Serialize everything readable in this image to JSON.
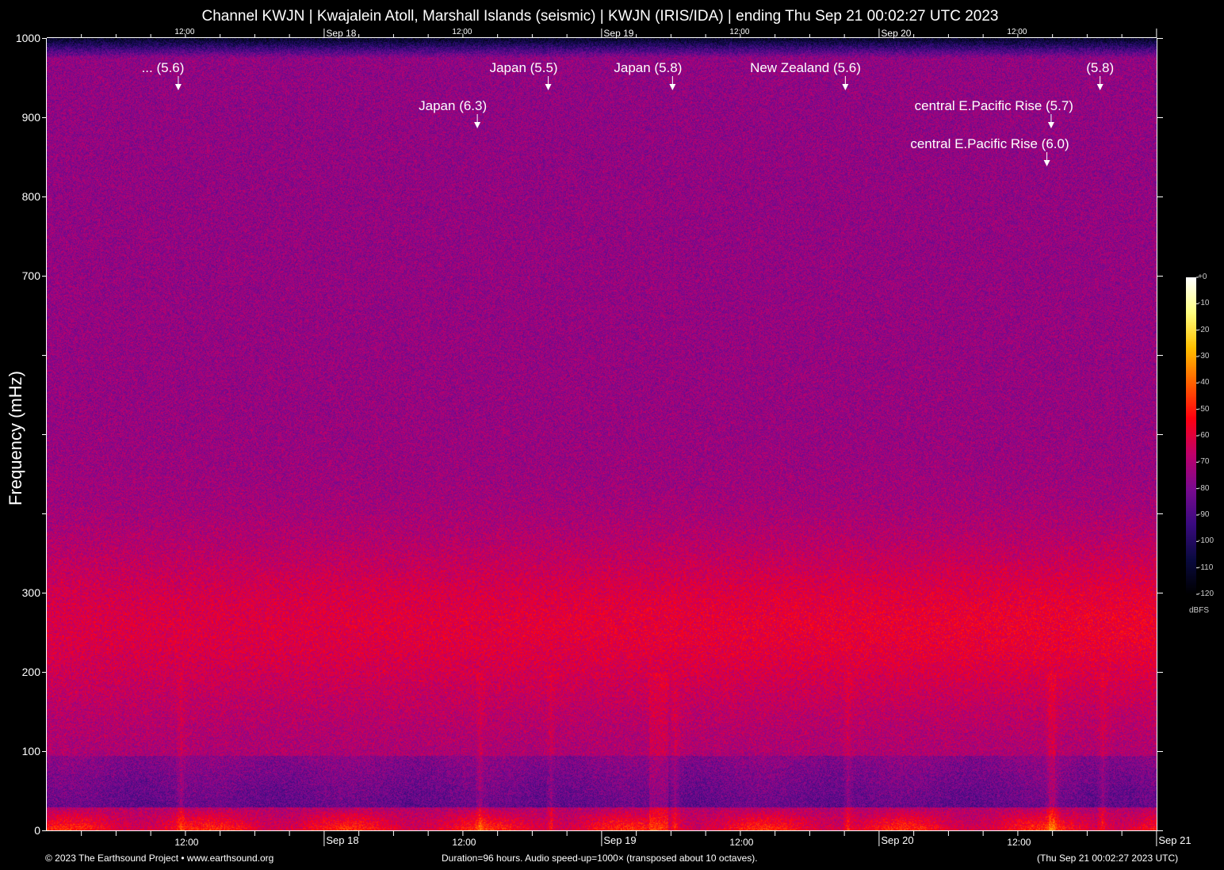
{
  "title": "Channel KWJN | Kwajalein Atoll, Marshall Islands (seismic) | KWJN (IRIS/IDA) | ending Thu Sep 21 00:02:27 UTC 2023",
  "footer": {
    "left": "© 2023 The Earthsound Project • www.earthsound.org",
    "center": "Duration=96 hours. Audio speed-up=1000× (transposed about 10 octaves).",
    "right": "(Thu Sep 21 00:02:27 2023 UTC)"
  },
  "chart_data": {
    "type": "heatmap",
    "title": "Channel KWJN | Kwajalein Atoll, Marshall Islands (seismic) | KWJN (IRIS/IDA) | ending Thu Sep 21 00:02:27 UTC 2023",
    "ylabel": "Frequency (mHz)",
    "ylim": [
      0,
      1000
    ],
    "y_ticks": [
      0,
      100,
      200,
      300,
      400,
      500,
      600,
      700,
      800,
      900,
      1000
    ],
    "y_tick_labels": [
      "0",
      "100",
      "200",
      "300",
      "",
      "",
      "",
      "700",
      "800",
      "900",
      "1000"
    ],
    "x_range": [
      "Sep 17 00:02:27",
      "Sep 21 00:02:27"
    ],
    "x_tick_labels_top": [
      "12:00",
      "Sep 18",
      "12:00",
      "Sep 19",
      "12:00",
      "Sep 20",
      "12:00"
    ],
    "x_tick_labels_bottom": [
      "12:00",
      "Sep 18",
      "12:00",
      "Sep 19",
      "12:00",
      "Sep 20",
      "12:00",
      "Sep 21"
    ],
    "colorbar": {
      "label": "dBFS",
      "range": [
        -120,
        0
      ],
      "tick_labels": [
        "+0",
        "-10",
        "-20",
        "-30",
        "-40",
        "-50",
        "-60",
        "-70",
        "-80",
        "-90",
        "-100",
        "-110",
        "-120"
      ],
      "colormap": [
        "#000000",
        "#0a0a40",
        "#3a0a80",
        "#7a0a90",
        "#c0006a",
        "#ff0010",
        "#ff6000",
        "#ffc000",
        "#ffff80",
        "#ffffff"
      ]
    },
    "events": [
      {
        "label": "... (5.6)",
        "time": "Sep 17 11:25",
        "row": 1
      },
      {
        "label": "Japan (6.3)",
        "time": "Sep 18 13:17",
        "row": 2
      },
      {
        "label": "Japan (5.5)",
        "time": "Sep 18 19:25",
        "row": 1
      },
      {
        "label": "Japan (5.8)",
        "time": "Sep 19 06:10",
        "row": 1
      },
      {
        "label": "New Zealand (5.6)",
        "time": "Sep 19 21:07",
        "row": 1
      },
      {
        "label": "central E.Pacific Rise (5.7)",
        "time": "Sep 20 14:55",
        "row": 2
      },
      {
        "label": "central E.Pacific Rise (6.0)",
        "time": "Sep 20 14:33",
        "row": 3
      },
      {
        "label": "(5.8)",
        "time": "Sep 20 19:09",
        "row": 1
      }
    ]
  }
}
